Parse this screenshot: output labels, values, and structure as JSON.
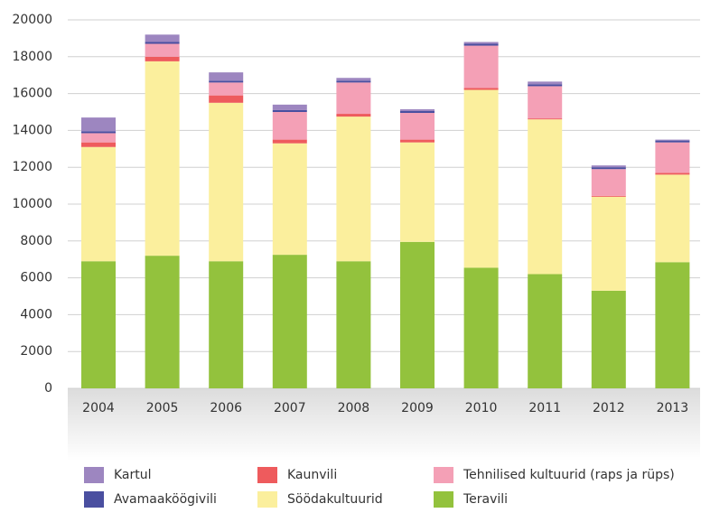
{
  "chart_data": {
    "type": "stacked_bar",
    "categories": [
      "2004",
      "2005",
      "2006",
      "2007",
      "2008",
      "2009",
      "2010",
      "2011",
      "2012",
      "2013"
    ],
    "series": [
      {
        "name": "Teravili",
        "color": "#93c23d",
        "values": [
          6900,
          7200,
          6900,
          7250,
          6900,
          7950,
          6550,
          6200,
          5300,
          6850
        ]
      },
      {
        "name": "Söödakultuurid",
        "color": "#fbef9d",
        "values": [
          6200,
          10550,
          8600,
          6050,
          7850,
          5400,
          9650,
          8400,
          5100,
          4750
        ]
      },
      {
        "name": "Kaunvili",
        "color": "#ee5b5d",
        "values": [
          250,
          250,
          400,
          200,
          150,
          150,
          100,
          50,
          50,
          100
        ]
      },
      {
        "name": "Tehnilised kultuurid (raps ja rüps)",
        "color": "#f4a0b6",
        "values": [
          500,
          700,
          700,
          1500,
          1700,
          1450,
          2300,
          1750,
          1450,
          1650
        ]
      },
      {
        "name": "Avamaaköögivili",
        "color": "#4a4fa0",
        "values": [
          100,
          100,
          100,
          100,
          100,
          100,
          100,
          100,
          100,
          100
        ]
      },
      {
        "name": "Kartul",
        "color": "#9d86c0",
        "values": [
          750,
          400,
          450,
          300,
          150,
          100,
          100,
          150,
          100,
          50
        ]
      }
    ],
    "ylim": [
      0,
      20000
    ],
    "yticks": [
      0,
      2000,
      4000,
      6000,
      8000,
      10000,
      12000,
      14000,
      16000,
      18000,
      20000
    ],
    "grid": true
  }
}
